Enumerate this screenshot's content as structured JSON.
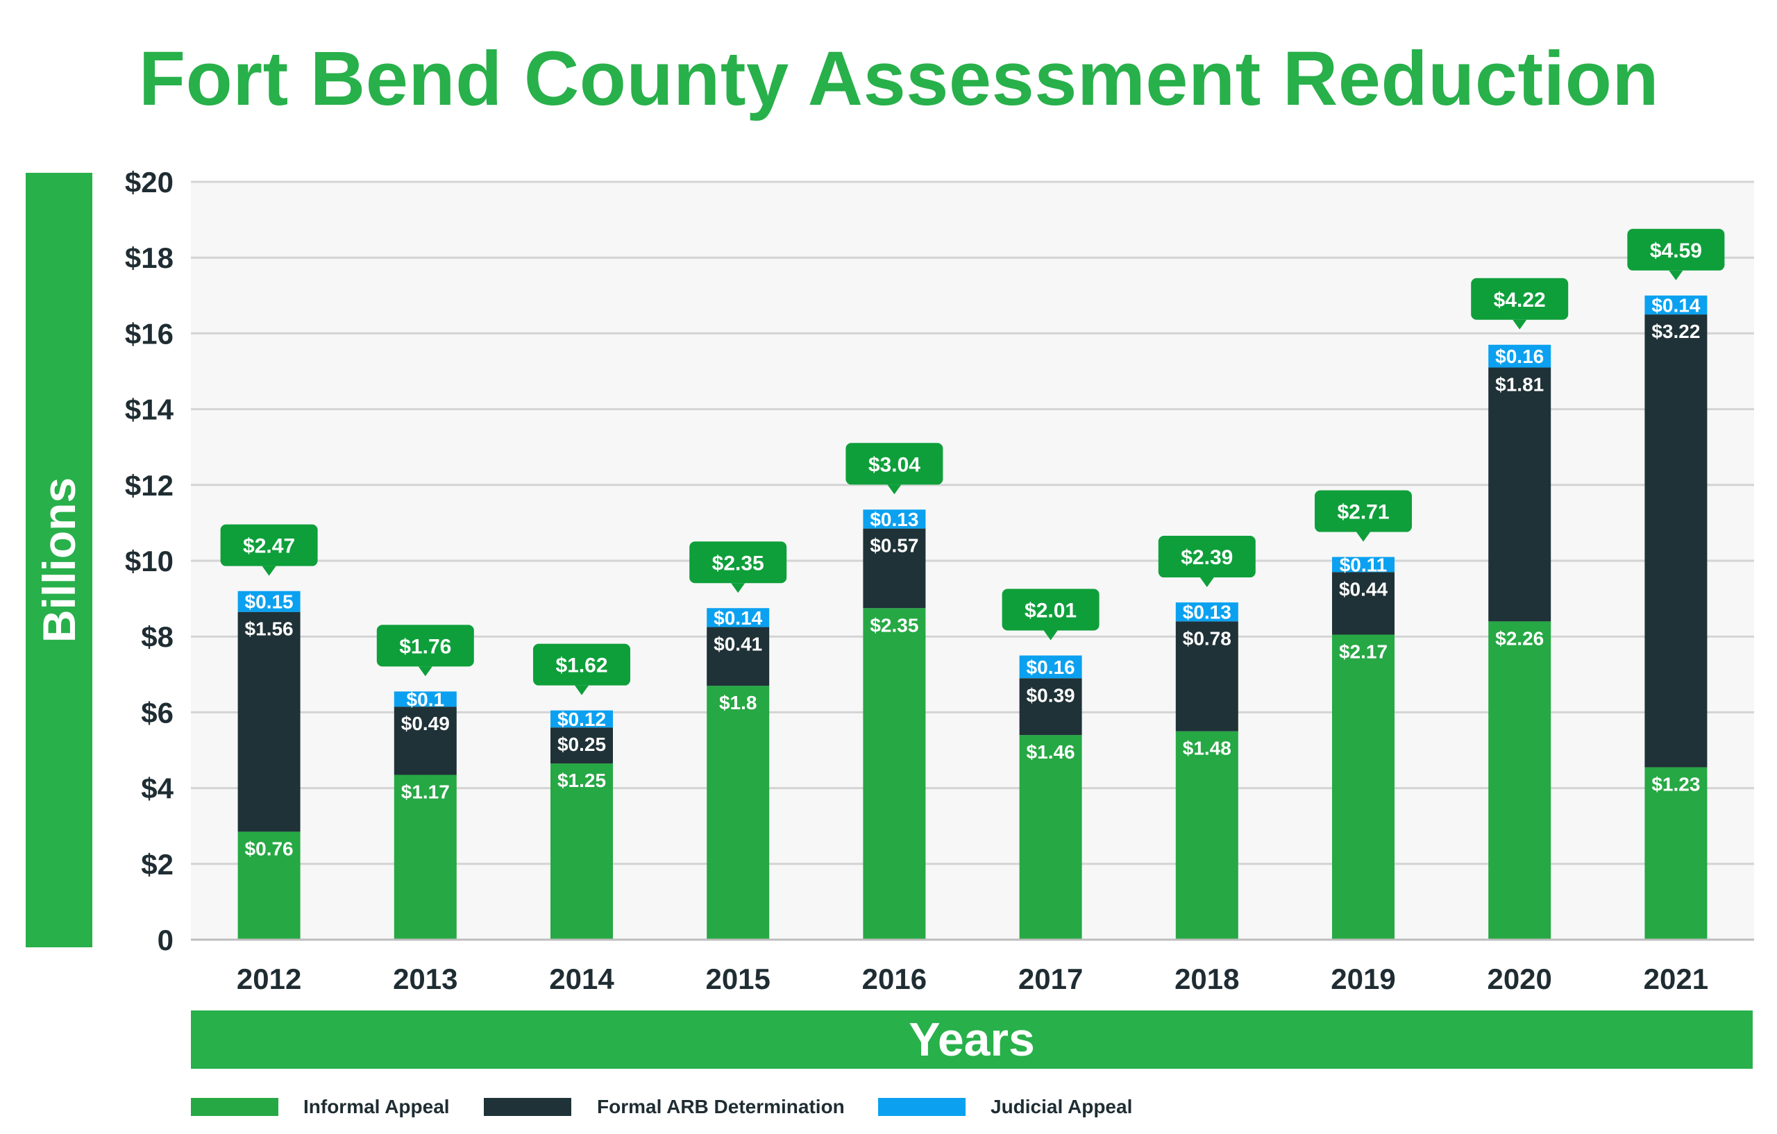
{
  "chart_data": {
    "type": "bar",
    "stacked": true,
    "title": "Fort Bend County Assessment Reduction",
    "xlabel": "Years",
    "ylabel": "Billions",
    "ylim": [
      0,
      20
    ],
    "yticks": [
      "0",
      "$2",
      "$4",
      "$6",
      "$8",
      "$10",
      "$12",
      "$14",
      "$16",
      "$18",
      "$20"
    ],
    "categories": [
      "2012",
      "2013",
      "2014",
      "2015",
      "2016",
      "2017",
      "2018",
      "2019",
      "2020",
      "2021"
    ],
    "series": [
      {
        "name": "Informal Appeal",
        "color": "#26a844",
        "heights": [
          2.85,
          4.35,
          4.65,
          6.7,
          8.75,
          5.4,
          5.5,
          8.05,
          8.4,
          4.55
        ],
        "labels": [
          "$0.76",
          "$1.17",
          "$1.25",
          "$1.8",
          "$2.35",
          "$1.46",
          "$1.48",
          "$2.17",
          "$2.26",
          "$1.23"
        ]
      },
      {
        "name": "Formal ARB Determination",
        "color": "#1f3237",
        "heights": [
          5.8,
          1.8,
          0.95,
          1.55,
          2.1,
          1.5,
          2.9,
          1.65,
          6.7,
          11.95
        ],
        "labels": [
          "$1.56",
          "$0.49",
          "$0.25",
          "$0.41",
          "$0.57",
          "$0.39",
          "$0.78",
          "$0.44",
          "$1.81",
          "$3.22"
        ]
      },
      {
        "name": "Judicial Appeal",
        "color": "#0ba1f0",
        "heights": [
          0.55,
          0.4,
          0.45,
          0.5,
          0.5,
          0.6,
          0.5,
          0.4,
          0.6,
          0.5
        ],
        "labels": [
          "$0.15",
          "$0.1",
          "$0.12",
          "$0.14",
          "$0.13",
          "$0.16",
          "$0.13",
          "$0.11",
          "$0.16",
          "$0.14"
        ]
      }
    ],
    "totals": [
      "$2.47",
      "$1.76",
      "$1.62",
      "$2.35",
      "$3.04",
      "$2.01",
      "$2.39",
      "$2.71",
      "$4.22",
      "$4.59"
    ],
    "grid": true,
    "legend_position": "bottom"
  },
  "colors": {
    "accent": "#28b04a",
    "callout": "#0e9f3a",
    "plot_background": "#f7f7f7",
    "gridline": "#d4d4d4",
    "tick_text": "#1f2d33"
  }
}
